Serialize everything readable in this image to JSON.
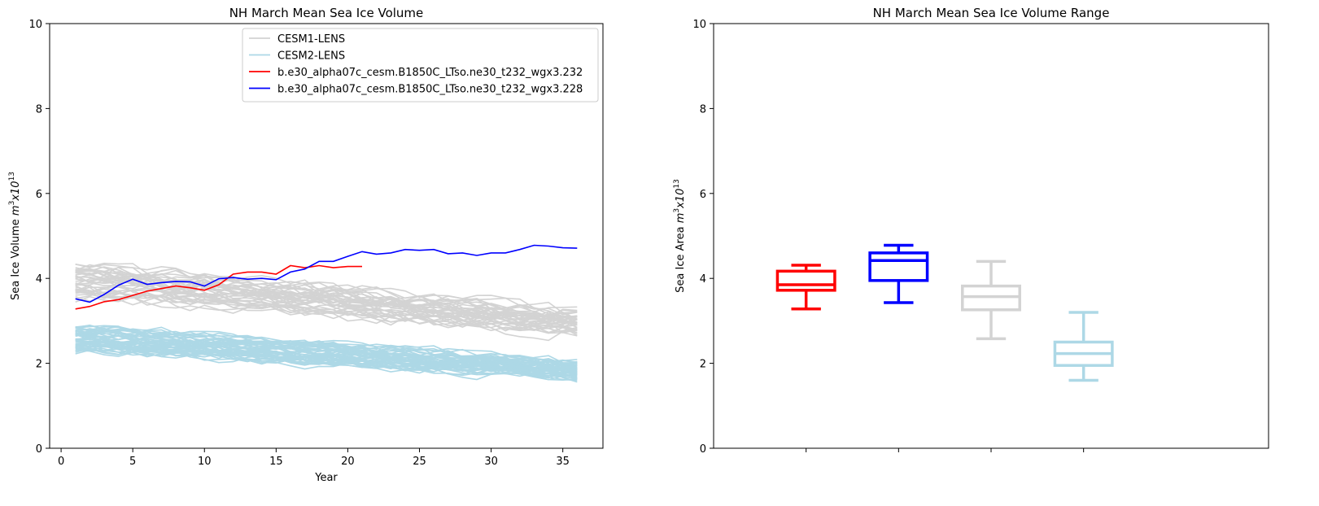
{
  "chart_data": [
    {
      "type": "line",
      "title": "NH March Mean Sea Ice Volume",
      "xlabel": "Year",
      "ylabel_prefix": "Sea Ice Volume ",
      "ylabel_math": "m",
      "ylabel_sup1": "3",
      "ylabel_mid": "x10",
      "ylabel_sup2": "13",
      "xlim": [
        -0.8,
        37.8
      ],
      "ylim": [
        0,
        10
      ],
      "xticks": [
        0,
        5,
        10,
        15,
        20,
        25,
        30,
        35
      ],
      "yticks": [
        0,
        2,
        4,
        6,
        8,
        10
      ],
      "grid": false,
      "legend_position": "top-center",
      "legend": [
        {
          "label": "CESM1-LENS",
          "color": "#d3d3d3"
        },
        {
          "label": "CESM2-LENS",
          "color": "#add8e6"
        },
        {
          "label": "b.e30_alpha07c_cesm.B1850C_LTso.ne30_t232_wgx3.232",
          "color": "#ff0000"
        },
        {
          "label": "b.e30_alpha07c_cesm.B1850C_LTso.ne30_t232_wgx3.228",
          "color": "#0000ff"
        }
      ],
      "ensembles": [
        {
          "name": "CESM1-LENS",
          "color": "#d3d3d3",
          "members": 40,
          "x_start": 1,
          "x_end": 36,
          "mean_start": 3.95,
          "mean_end": 2.95,
          "spread": 0.18,
          "seed": 11
        },
        {
          "name": "CESM2-LENS",
          "color": "#add8e6",
          "members": 50,
          "x_start": 1,
          "x_end": 36,
          "mean_start": 2.6,
          "mean_end": 1.85,
          "spread": 0.13,
          "seed": 29
        }
      ],
      "series": [
        {
          "name": "b.e30_alpha07c_cesm.B1850C_LTso.ne30_t232_wgx3.232",
          "color": "#ff0000",
          "x": [
            1,
            2,
            3,
            4,
            5,
            6,
            7,
            8,
            9,
            10,
            11,
            12,
            13,
            14,
            15,
            16,
            17,
            18,
            19,
            20,
            21
          ],
          "values": [
            3.28,
            3.34,
            3.45,
            3.5,
            3.6,
            3.7,
            3.76,
            3.82,
            3.78,
            3.72,
            3.85,
            4.1,
            4.15,
            4.15,
            4.1,
            4.3,
            4.25,
            4.3,
            4.25,
            4.28,
            4.28
          ]
        },
        {
          "name": "b.e30_alpha07c_cesm.B1850C_LTso.ne30_t232_wgx3.228",
          "color": "#0000ff",
          "x": [
            1,
            2,
            3,
            4,
            5,
            6,
            7,
            8,
            9,
            10,
            11,
            12,
            13,
            14,
            15,
            16,
            17,
            18,
            19,
            20,
            21,
            22,
            23,
            24,
            25,
            26,
            27,
            28,
            29,
            30,
            31,
            32,
            33,
            34,
            35,
            36
          ],
          "values": [
            3.52,
            3.44,
            3.62,
            3.84,
            3.98,
            3.86,
            3.9,
            3.93,
            3.92,
            3.82,
            3.99,
            4.02,
            3.98,
            4.0,
            3.97,
            4.15,
            4.22,
            4.4,
            4.4,
            4.52,
            4.63,
            4.57,
            4.6,
            4.68,
            4.66,
            4.68,
            4.58,
            4.6,
            4.54,
            4.6,
            4.6,
            4.68,
            4.78,
            4.76,
            4.72,
            4.71
          ]
        }
      ]
    },
    {
      "type": "box",
      "title": "NH March Mean Sea Ice Volume Range",
      "ylabel_prefix": "Sea Ice Area ",
      "ylabel_math": "m",
      "ylabel_sup1": "3",
      "ylabel_mid": "x10",
      "ylabel_sup2": "13",
      "xlim": [
        0,
        6
      ],
      "ylim": [
        0,
        10
      ],
      "yticks": [
        0,
        2,
        4,
        6,
        8,
        10
      ],
      "xticks": [
        1,
        2,
        3,
        4
      ],
      "boxes": [
        {
          "name": "b.e30_alpha07c_cesm.B1850C_LTso.ne30_t232_wgx3.232",
          "color": "#ff0000",
          "position": 1,
          "min": 3.28,
          "q1": 3.72,
          "median": 3.85,
          "q3": 4.17,
          "max": 4.31
        },
        {
          "name": "b.e30_alpha07c_cesm.B1850C_LTso.ne30_t232_wgx3.228",
          "color": "#0000ff",
          "position": 2,
          "min": 3.43,
          "q1": 3.95,
          "median": 4.42,
          "q3": 4.6,
          "max": 4.78
        },
        {
          "name": "CESM1-LENS",
          "color": "#d3d3d3",
          "position": 3,
          "min": 2.58,
          "q1": 3.26,
          "median": 3.57,
          "q3": 3.82,
          "max": 4.4
        },
        {
          "name": "CESM2-LENS",
          "color": "#add8e6",
          "position": 4,
          "min": 1.6,
          "q1": 1.95,
          "median": 2.23,
          "q3": 2.5,
          "max": 3.2
        }
      ]
    }
  ]
}
